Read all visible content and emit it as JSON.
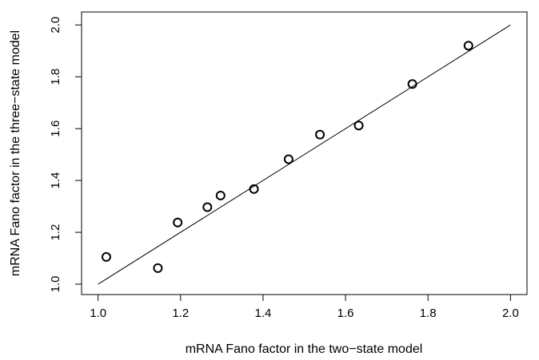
{
  "chart_data": {
    "type": "scatter",
    "title": "",
    "xlabel": "mRNA Fano factor in the two−state model",
    "ylabel": "mRNA Fano factor in the three−state model",
    "xlim": [
      0.96,
      2.04
    ],
    "ylim": [
      0.96,
      2.05
    ],
    "xticks": [
      1.0,
      1.2,
      1.4,
      1.6,
      1.8,
      2.0
    ],
    "xtick_labels": [
      "1.0",
      "1.2",
      "1.4",
      "1.6",
      "1.8",
      "2.0"
    ],
    "yticks": [
      1.0,
      1.2,
      1.4,
      1.6,
      1.8,
      2.0
    ],
    "ytick_labels": [
      "1.0",
      "1.2",
      "1.4",
      "1.6",
      "1.8",
      "2.0"
    ],
    "grid": false,
    "reference_line": {
      "from": [
        1.0,
        1.0
      ],
      "to": [
        2.0,
        2.0
      ]
    },
    "points": [
      {
        "x": 1.02,
        "y": 1.105
      },
      {
        "x": 1.145,
        "y": 1.062
      },
      {
        "x": 1.193,
        "y": 1.238
      },
      {
        "x": 1.265,
        "y": 1.297
      },
      {
        "x": 1.297,
        "y": 1.342
      },
      {
        "x": 1.378,
        "y": 1.367
      },
      {
        "x": 1.462,
        "y": 1.482
      },
      {
        "x": 1.538,
        "y": 1.577
      },
      {
        "x": 1.632,
        "y": 1.612
      },
      {
        "x": 1.762,
        "y": 1.772
      },
      {
        "x": 1.898,
        "y": 1.92
      }
    ]
  }
}
